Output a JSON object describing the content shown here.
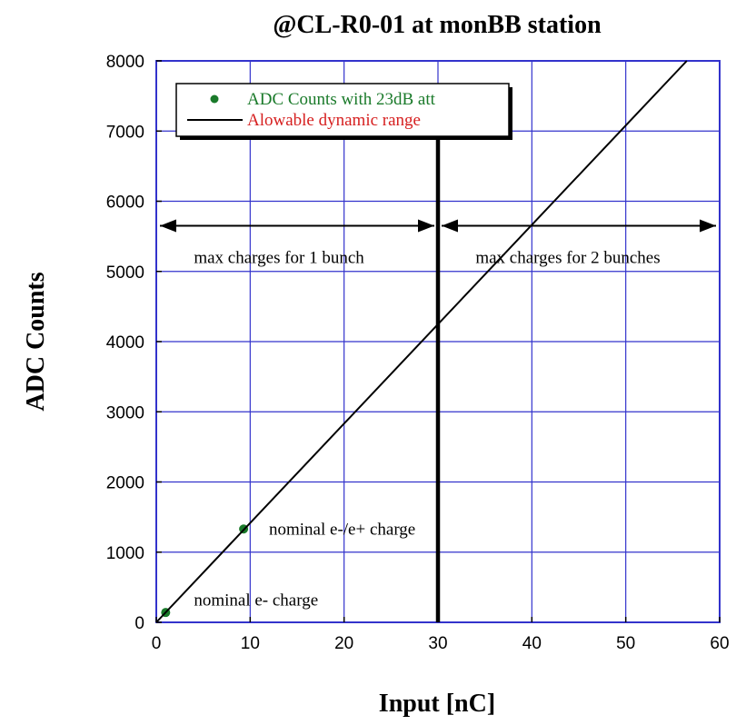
{
  "chart_data": {
    "type": "scatter",
    "title": "@CL-R0-01 at monBB station",
    "xlabel": "Input [nC]",
    "ylabel": "ADC Counts",
    "xlim": [
      0,
      60
    ],
    "ylim": [
      0,
      8000
    ],
    "x_ticks": [
      "0",
      "10",
      "20",
      "30",
      "40",
      "50",
      "60"
    ],
    "y_ticks": [
      "0",
      "1000",
      "2000",
      "3000",
      "4000",
      "5000",
      "6000",
      "7000",
      "8000"
    ],
    "grid": true,
    "legend_position": "top-left",
    "series": [
      {
        "name": "ADC Counts with 23dB att",
        "kind": "points",
        "color": "#1a7a2a",
        "x": [
          1,
          9.3
        ],
        "y": [
          140,
          1330
        ]
      },
      {
        "name": "Alowable dynamic range",
        "kind": "line",
        "color": "#000000",
        "x": [
          0,
          56.5
        ],
        "y": [
          0,
          8000
        ]
      }
    ],
    "annotations": [
      {
        "id": "nominal-e",
        "text": "nominal e- charge",
        "x": 4,
        "y": 240
      },
      {
        "id": "nominal-ee",
        "text": "nominal e-/e+ charge",
        "x": 12,
        "y": 1250
      },
      {
        "id": "one-bunch",
        "text": "max charges for 1 bunch",
        "x": 4,
        "y": 5120
      },
      {
        "id": "two-bunch",
        "text": "max charges for 2 bunches",
        "x": 34,
        "y": 5120
      }
    ],
    "vertical_line": {
      "x": 30
    },
    "range_arrows": [
      {
        "from": 0,
        "to": 30,
        "y": 5650
      },
      {
        "from": 30,
        "to": 60,
        "y": 5650
      }
    ],
    "colors": {
      "grid": "#3333cc",
      "frame": "#3333cc",
      "legend_text_1": "#1a7a2a",
      "legend_text_2": "#d62020"
    }
  }
}
